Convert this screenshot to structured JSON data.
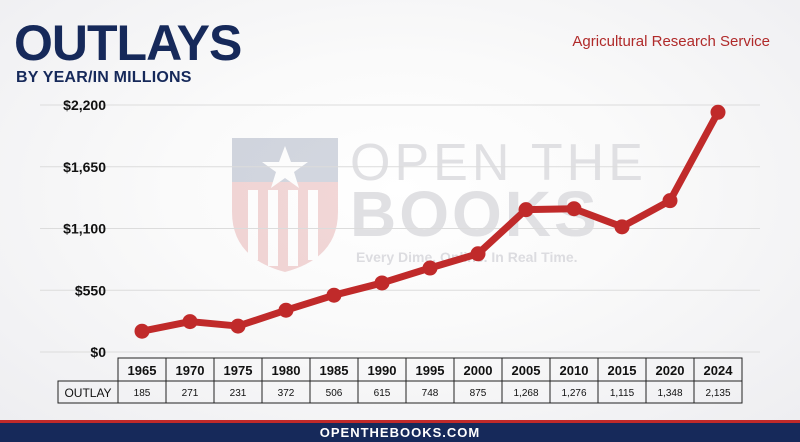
{
  "header": {
    "title": "OUTLAYS",
    "subtitle": "BY YEAR/IN MILLIONS",
    "agency": "Agricultural Research Service"
  },
  "watermark": {
    "line1": "OPEN THE",
    "line2": "BOOKS",
    "tagline": "Every Dime. Online. In Real Time."
  },
  "footer": {
    "url": "OPENTHEBOOKS.COM"
  },
  "colors": {
    "navy": "#16295a",
    "red": "#c02a2a"
  },
  "chart_data": {
    "type": "line",
    "title": "OUTLAYS",
    "subtitle": "BY YEAR/IN MILLIONS",
    "xlabel": "",
    "ylabel": "",
    "categories": [
      "1965",
      "1970",
      "1975",
      "1980",
      "1985",
      "1990",
      "1995",
      "2000",
      "2005",
      "2010",
      "2015",
      "2020",
      "2024"
    ],
    "series": [
      {
        "name": "OUTLAY",
        "values": [
          185,
          271,
          231,
          372,
          506,
          615,
          748,
          875,
          1268,
          1276,
          1115,
          1348,
          2135
        ],
        "labels": [
          "185",
          "271",
          "231",
          "372",
          "506",
          "615",
          "748",
          "875",
          "1,268",
          "1,276",
          "1,115",
          "1,348",
          "2,135"
        ]
      }
    ],
    "yticks": [
      0,
      550,
      1100,
      1650,
      2200
    ],
    "ytick_labels": [
      "$0",
      "$550",
      "$1,100",
      "$1,650",
      "$2,200"
    ],
    "ylim": [
      0,
      2200
    ],
    "grid": true,
    "table_row_label": "OUTLAY"
  }
}
